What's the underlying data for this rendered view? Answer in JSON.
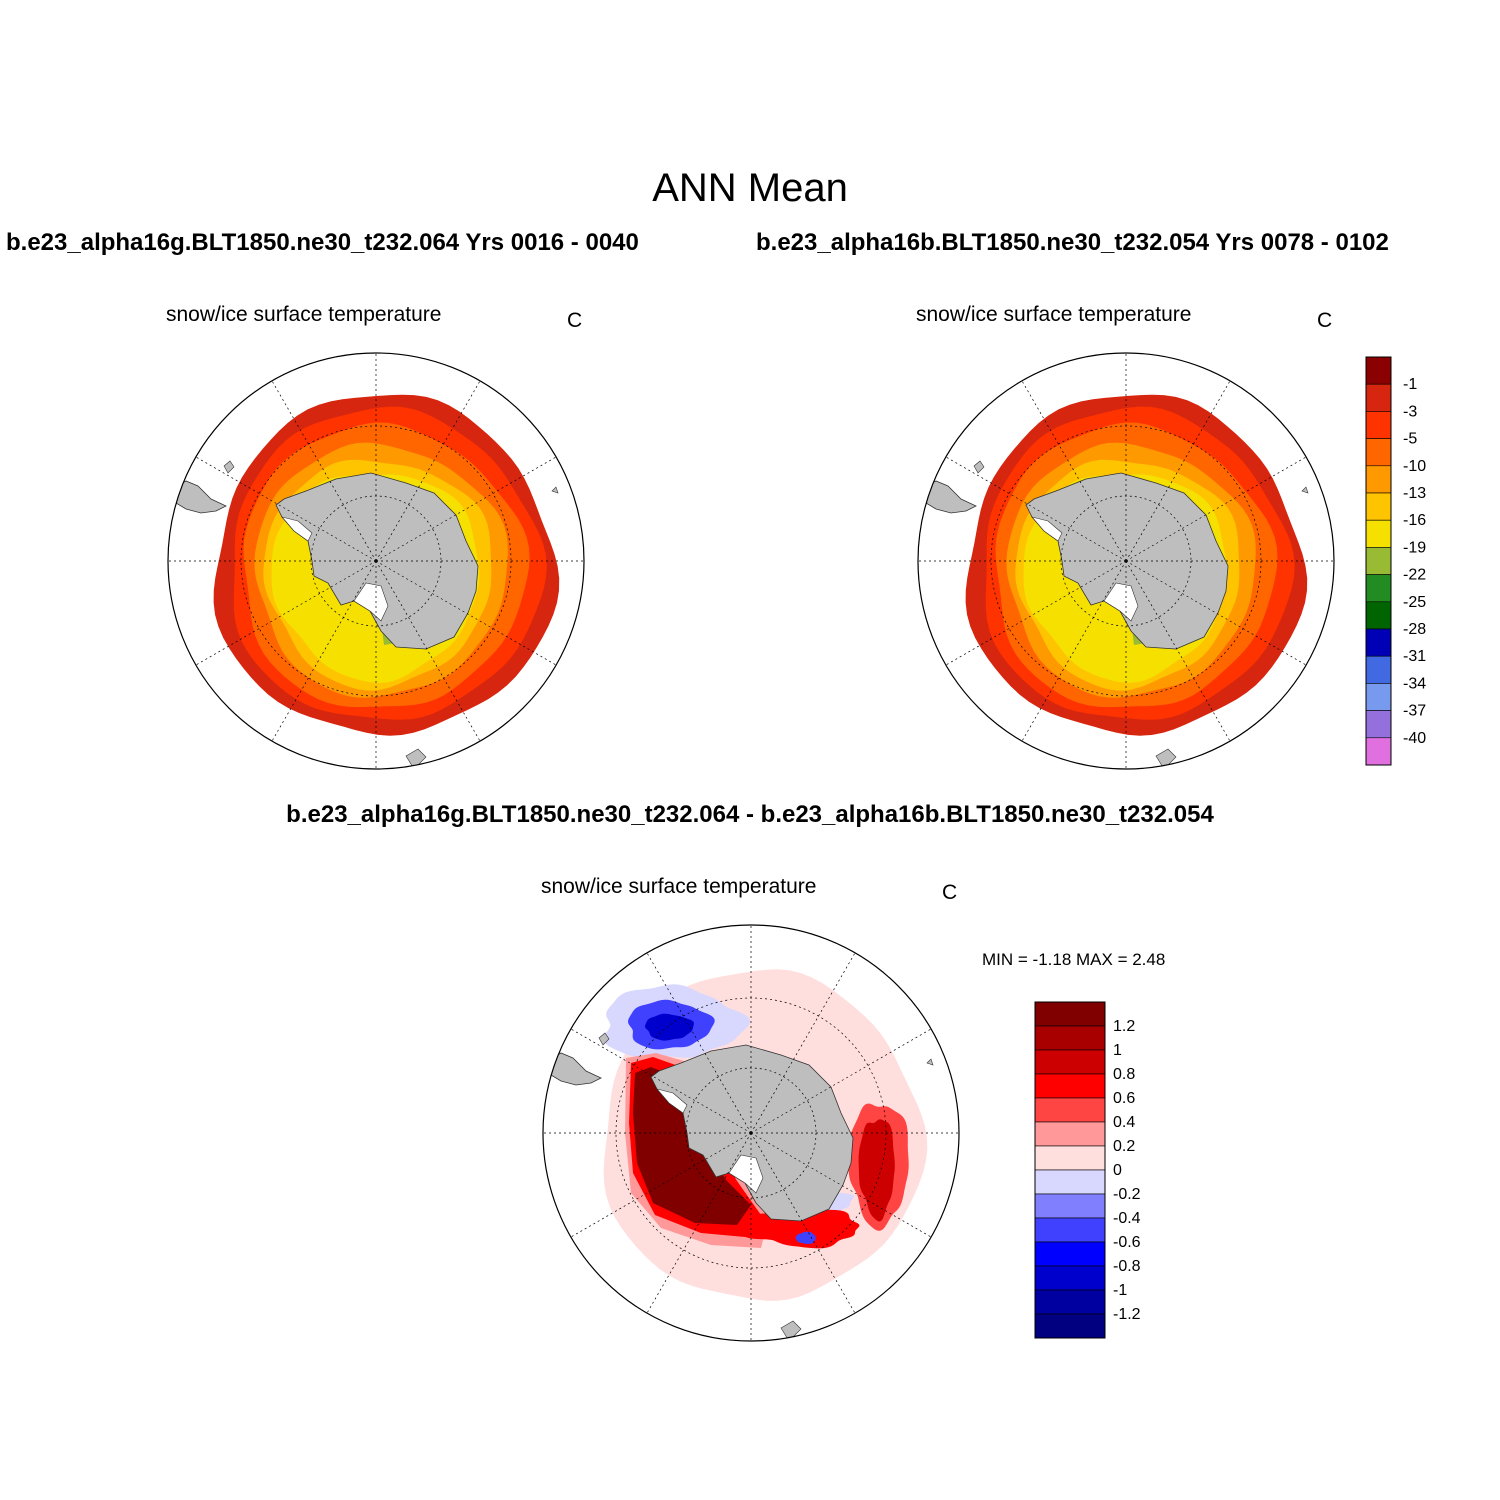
{
  "title": "ANN Mean",
  "case_a_label": "b.e23_alpha16g.BLT1850.ne30_t232.064  Yrs 0016 - 0040",
  "case_b_label": "b.e23_alpha16b.BLT1850.ne30_t232.054  Yrs 0078 - 0102",
  "diff_label": "b.e23_alpha16g.BLT1850.ne30_t232.064 - b.e23_alpha16b.BLT1850.ne30_t232.054",
  "panels": [
    {
      "variable": "snow/ice surface temperature",
      "units": "C"
    },
    {
      "variable": "snow/ice surface temperature",
      "units": "C"
    },
    {
      "variable": "snow/ice surface temperature",
      "units": "C",
      "min_max": "MIN =  -1.18 MAX =   2.48"
    }
  ],
  "colors": {
    "land": "#bebebe",
    "ocean": "#ffffff",
    "grid": "#000000"
  },
  "chart_data": [
    {
      "type": "map",
      "projection": "south-polar-stereographic",
      "legend": {
        "labels": [
          "-1",
          "-3",
          "-5",
          "-10",
          "-13",
          "-16",
          "-19",
          "-22",
          "-25",
          "-28",
          "-31",
          "-34",
          "-37",
          "-40"
        ],
        "colors": [
          "#8b0000",
          "#d7260f",
          "#ff3300",
          "#ff6600",
          "#ff9900",
          "#ffc400",
          "#f5e000",
          "#99bb33",
          "#228b22",
          "#006400",
          "#0000b4",
          "#4169e1",
          "#7799ee",
          "#9370db",
          "#e070e0"
        ]
      }
    },
    {
      "type": "map",
      "projection": "south-polar-stereographic",
      "legend": {
        "labels": [
          "1.2",
          "1",
          "0.8",
          "0.6",
          "0.4",
          "0.2",
          "0",
          "-0.2",
          "-0.4",
          "-0.6",
          "-0.8",
          "-1",
          "-1.2"
        ],
        "colors": [
          "#800000",
          "#a80000",
          "#cc0000",
          "#ff0000",
          "#ff4444",
          "#ff9999",
          "#ffdede",
          "#d8d8ff",
          "#8080ff",
          "#4040ff",
          "#0000ff",
          "#0000cc",
          "#0000a0",
          "#000080"
        ]
      }
    }
  ]
}
